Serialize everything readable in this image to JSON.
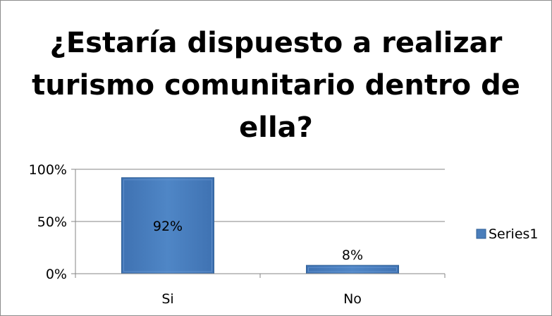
{
  "chart_data": {
    "type": "bar",
    "title": "¿Estaría dispuesto a realizar turismo comunitario dentro de ella?",
    "title_lines": [
      "¿Estaría dispuesto a realizar",
      "turismo comunitario dentro de",
      "ella?"
    ],
    "categories": [
      "Si",
      "No"
    ],
    "series": [
      {
        "name": "Series1",
        "values": [
          92,
          8
        ],
        "labels": [
          "92%",
          "8%"
        ]
      }
    ],
    "ylim": [
      0,
      100
    ],
    "yticks": [
      0,
      50,
      100
    ],
    "ytick_labels": [
      "0%",
      "50%",
      "100%"
    ],
    "grid": true,
    "legend_position": "right",
    "bar_color": "#4a7ebb",
    "bar_edge_color": "#2f5f95"
  }
}
